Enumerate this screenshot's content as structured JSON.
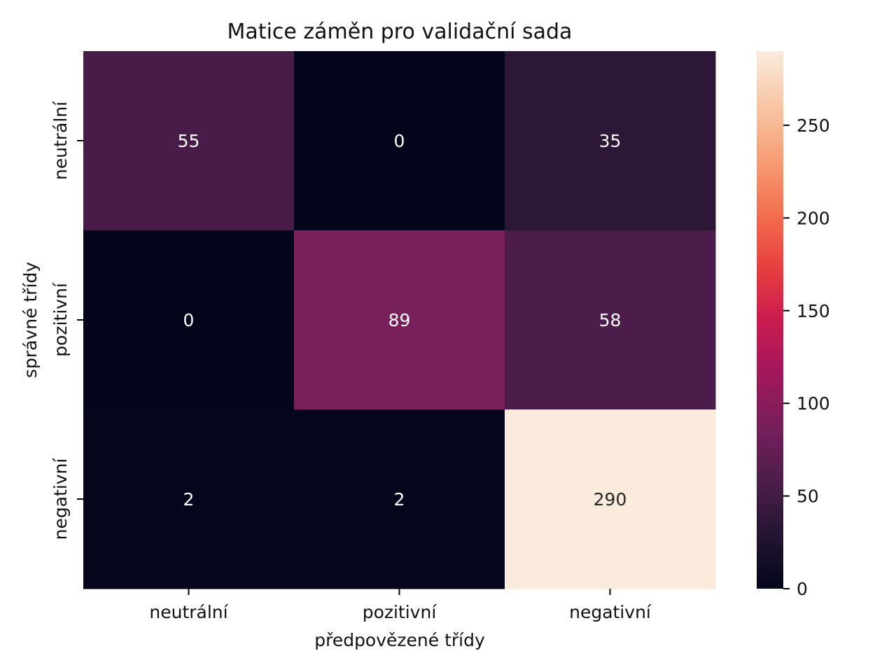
{
  "chart_data": {
    "type": "heatmap",
    "title": "Matice záměn pro validační sada",
    "xlabel": "předpovězené třídy",
    "ylabel": "správné třídy",
    "x_categories": [
      "neutrální",
      "pozitivní",
      "negativní"
    ],
    "y_categories": [
      "neutrální",
      "pozitivní",
      "negativní"
    ],
    "values": [
      [
        55,
        0,
        35
      ],
      [
        0,
        89,
        58
      ],
      [
        2,
        2,
        290
      ]
    ],
    "value_range": [
      0,
      290
    ],
    "colormap": "rocket",
    "colorbar_ticks": [
      0,
      50,
      100,
      150,
      200,
      250
    ],
    "grid": false,
    "annotations": true
  }
}
